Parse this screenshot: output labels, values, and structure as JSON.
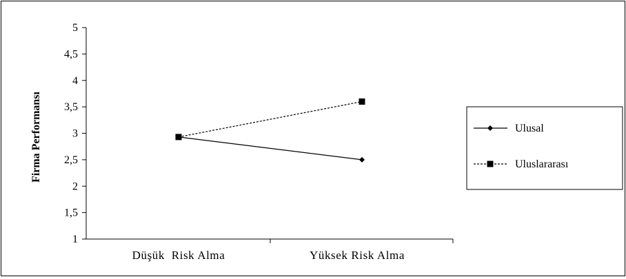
{
  "chart_data": {
    "type": "line",
    "ylabel": "Firma Performansı",
    "ylim": [
      1,
      5
    ],
    "yticks": [
      "1",
      "1,5",
      "2",
      "2,5",
      "3",
      "3,5",
      "4",
      "4,5",
      "5"
    ],
    "categories": [
      "Düşük  Risk Alma",
      "Yüksek Risk Alma"
    ],
    "grid": false,
    "legend_position": "right",
    "series": [
      {
        "name": "Ulusal",
        "values": [
          2.93,
          2.5
        ],
        "marker": "diamond",
        "line": "solid",
        "color": "#000000"
      },
      {
        "name": "Uluslararası",
        "values": [
          2.93,
          3.6
        ],
        "marker": "square",
        "line": "dashed",
        "color": "#000000"
      }
    ]
  }
}
